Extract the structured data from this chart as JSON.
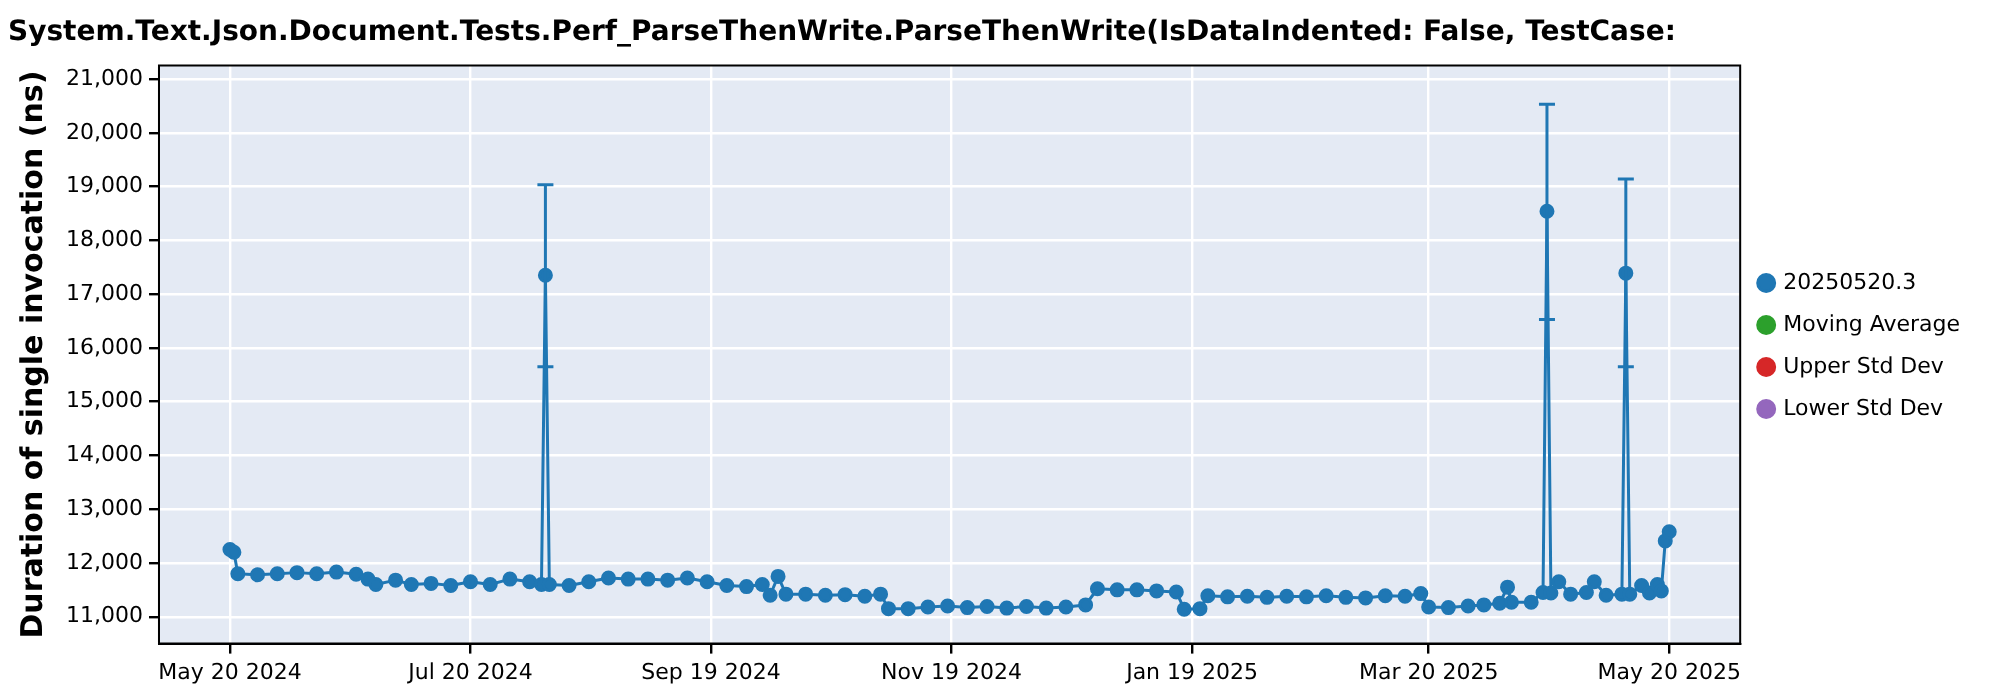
{
  "chart_data": {
    "type": "line",
    "title": "System.Text.Json.Document.Tests.Perf_ParseThenWrite.ParseThenWrite(IsDataIndented: False, TestCase:",
    "ylabel": "Duration of single invocation (ns)",
    "x": [
      "2024-05-20",
      "2024-05-21",
      "2024-05-22",
      "2024-05-27",
      "2024-06-01",
      "2024-06-06",
      "2024-06-11",
      "2024-06-16",
      "2024-06-21",
      "2024-06-24",
      "2024-06-26",
      "2024-07-01",
      "2024-07-05",
      "2024-07-10",
      "2024-07-15",
      "2024-07-20",
      "2024-07-25",
      "2024-07-30",
      "2024-08-04",
      "2024-08-07",
      "2024-08-08",
      "2024-08-09",
      "2024-08-14",
      "2024-08-19",
      "2024-08-24",
      "2024-08-29",
      "2024-09-03",
      "2024-09-08",
      "2024-09-13",
      "2024-09-18",
      "2024-09-23",
      "2024-09-28",
      "2024-10-02",
      "2024-10-04",
      "2024-10-06",
      "2024-10-08",
      "2024-10-13",
      "2024-10-18",
      "2024-10-23",
      "2024-10-28",
      "2024-11-01",
      "2024-11-03",
      "2024-11-08",
      "2024-11-13",
      "2024-11-18",
      "2024-11-23",
      "2024-11-28",
      "2024-12-03",
      "2024-12-08",
      "2024-12-13",
      "2024-12-18",
      "2024-12-23",
      "2024-12-26",
      "2024-12-31",
      "2025-01-05",
      "2025-01-10",
      "2025-01-15",
      "2025-01-17",
      "2025-01-21",
      "2025-01-23",
      "2025-01-28",
      "2025-02-02",
      "2025-02-07",
      "2025-02-12",
      "2025-02-17",
      "2025-02-22",
      "2025-02-27",
      "2025-03-04",
      "2025-03-09",
      "2025-03-14",
      "2025-03-18",
      "2025-03-20",
      "2025-03-25",
      "2025-03-30",
      "2025-04-03",
      "2025-04-07",
      "2025-04-09",
      "2025-04-10",
      "2025-04-15",
      "2025-04-18",
      "2025-04-19",
      "2025-04-20",
      "2025-04-22",
      "2025-04-25",
      "2025-04-29",
      "2025-05-01",
      "2025-05-04",
      "2025-05-08",
      "2025-05-09",
      "2025-05-10",
      "2025-05-13",
      "2025-05-15",
      "2025-05-17",
      "2025-05-18",
      "2025-05-19",
      "2025-05-20"
    ],
    "series": [
      {
        "name": "20250520.3",
        "color": "#1f77b4",
        "values": [
          12250,
          12200,
          11800,
          11780,
          11800,
          11820,
          11800,
          11830,
          11790,
          11700,
          11600,
          11680,
          11600,
          11620,
          11580,
          11650,
          11600,
          11700,
          11650,
          11600,
          17350,
          11600,
          11580,
          11650,
          11720,
          11700,
          11700,
          11680,
          11720,
          11650,
          11580,
          11560,
          11600,
          11400,
          11750,
          11420,
          11420,
          11400,
          11410,
          11380,
          11420,
          11150,
          11150,
          11180,
          11200,
          11170,
          11190,
          11160,
          11190,
          11160,
          11180,
          11220,
          11520,
          11500,
          11500,
          11480,
          11460,
          11140,
          11150,
          11390,
          11370,
          11380,
          11360,
          11380,
          11370,
          11390,
          11360,
          11350,
          11390,
          11380,
          11430,
          11180,
          11170,
          11200,
          11220,
          11250,
          11550,
          11270,
          11270,
          11450,
          18540,
          11440,
          11650,
          11420,
          11450,
          11650,
          11400,
          11420,
          17390,
          11420,
          11580,
          11440,
          11600,
          11480,
          12410,
          12580
        ],
        "errors": [
          null,
          null,
          null,
          null,
          null,
          null,
          null,
          null,
          null,
          null,
          null,
          null,
          null,
          null,
          null,
          null,
          null,
          null,
          null,
          null,
          [
            15650,
            19035
          ],
          null,
          null,
          null,
          null,
          null,
          null,
          null,
          null,
          null,
          null,
          null,
          null,
          null,
          null,
          null,
          null,
          null,
          null,
          null,
          null,
          null,
          null,
          null,
          null,
          null,
          null,
          null,
          null,
          null,
          null,
          null,
          null,
          null,
          null,
          null,
          null,
          null,
          null,
          null,
          null,
          null,
          null,
          null,
          null,
          null,
          null,
          null,
          null,
          null,
          null,
          null,
          null,
          null,
          null,
          null,
          null,
          null,
          null,
          null,
          [
            16530,
            20530
          ],
          null,
          null,
          null,
          null,
          null,
          null,
          null,
          [
            15650,
            19140
          ],
          null,
          null,
          null,
          null,
          null,
          null,
          null
        ]
      },
      {
        "name": "Moving Average",
        "color": "#2ca02c",
        "values": [
          null,
          null,
          null,
          null,
          null,
          null,
          null,
          null,
          null,
          null,
          null,
          null,
          null,
          null,
          null,
          null,
          null,
          null,
          null,
          null,
          null,
          null,
          null,
          null,
          null,
          null,
          null,
          null,
          null,
          null,
          null,
          null,
          null,
          null,
          null,
          null,
          null,
          null,
          null,
          null,
          null,
          null,
          null,
          null,
          null,
          null,
          null,
          null,
          null,
          null,
          null,
          null,
          null,
          null,
          null,
          null,
          null,
          null,
          null,
          null,
          null,
          null,
          null,
          null,
          null,
          null,
          null,
          null,
          null,
          null,
          null,
          null,
          null,
          null,
          null,
          null,
          null,
          null,
          null,
          null,
          null,
          null,
          null,
          null,
          null,
          null,
          null,
          null,
          null,
          null,
          null,
          null,
          null,
          null,
          null,
          null
        ]
      },
      {
        "name": "Upper Std Dev",
        "color": "#d62728",
        "values": [
          null,
          null,
          null,
          null,
          null,
          null,
          null,
          null,
          null,
          null,
          null,
          null,
          null,
          null,
          null,
          null,
          null,
          null,
          null,
          null,
          null,
          null,
          null,
          null,
          null,
          null,
          null,
          null,
          null,
          null,
          null,
          null,
          null,
          null,
          null,
          null,
          null,
          null,
          null,
          null,
          null,
          null,
          null,
          null,
          null,
          null,
          null,
          null,
          null,
          null,
          null,
          null,
          null,
          null,
          null,
          null,
          null,
          null,
          null,
          null,
          null,
          null,
          null,
          null,
          null,
          null,
          null,
          null,
          null,
          null,
          null,
          null,
          null,
          null,
          null,
          null,
          null,
          null,
          null,
          null,
          null,
          null,
          null,
          null,
          null,
          null,
          null,
          null,
          null,
          null,
          null,
          null,
          null,
          null,
          null,
          null
        ]
      },
      {
        "name": "Lower Std Dev",
        "color": "#9467bd",
        "values": [
          null,
          null,
          null,
          null,
          null,
          null,
          null,
          null,
          null,
          null,
          null,
          null,
          null,
          null,
          null,
          null,
          null,
          null,
          null,
          null,
          null,
          null,
          null,
          null,
          null,
          null,
          null,
          null,
          null,
          null,
          null,
          null,
          null,
          null,
          null,
          null,
          null,
          null,
          null,
          null,
          null,
          null,
          null,
          null,
          null,
          null,
          null,
          null,
          null,
          null,
          null,
          null,
          null,
          null,
          null,
          null,
          null,
          null,
          null,
          null,
          null,
          null,
          null,
          null,
          null,
          null,
          null,
          null,
          null,
          null,
          null,
          null,
          null,
          null,
          null,
          null,
          null,
          null,
          null,
          null,
          null,
          null,
          null,
          null,
          null,
          null,
          null,
          null,
          null,
          null,
          null,
          null,
          null,
          null,
          null,
          null
        ]
      }
    ],
    "xlim": [
      "2024-05-02",
      "2025-06-07"
    ],
    "xticks": [
      {
        "value": "2024-05-20",
        "label": "May 20 2024"
      },
      {
        "value": "2024-07-20",
        "label": "Jul 20 2024"
      },
      {
        "value": "2024-09-19",
        "label": "Sep 19 2024"
      },
      {
        "value": "2024-11-19",
        "label": "Nov 19 2024"
      },
      {
        "value": "2025-01-19",
        "label": "Jan 19 2025"
      },
      {
        "value": "2025-03-20",
        "label": "Mar 20 2025"
      },
      {
        "value": "2025-05-20",
        "label": "May 20 2025"
      }
    ],
    "ylim": [
      10500,
      21250
    ],
    "yticks": [
      {
        "value": 11000,
        "label": "11,000"
      },
      {
        "value": 12000,
        "label": "12,000"
      },
      {
        "value": 13000,
        "label": "13,000"
      },
      {
        "value": 14000,
        "label": "14,000"
      },
      {
        "value": 15000,
        "label": "15,000"
      },
      {
        "value": 16000,
        "label": "16,000"
      },
      {
        "value": 17000,
        "label": "17,000"
      },
      {
        "value": 18000,
        "label": "18,000"
      },
      {
        "value": 19000,
        "label": "19,000"
      },
      {
        "value": 20000,
        "label": "20,000"
      },
      {
        "value": 21000,
        "label": "21,000"
      }
    ],
    "grid": true,
    "legend": "right",
    "marker": "circle",
    "line_style": "solid"
  }
}
